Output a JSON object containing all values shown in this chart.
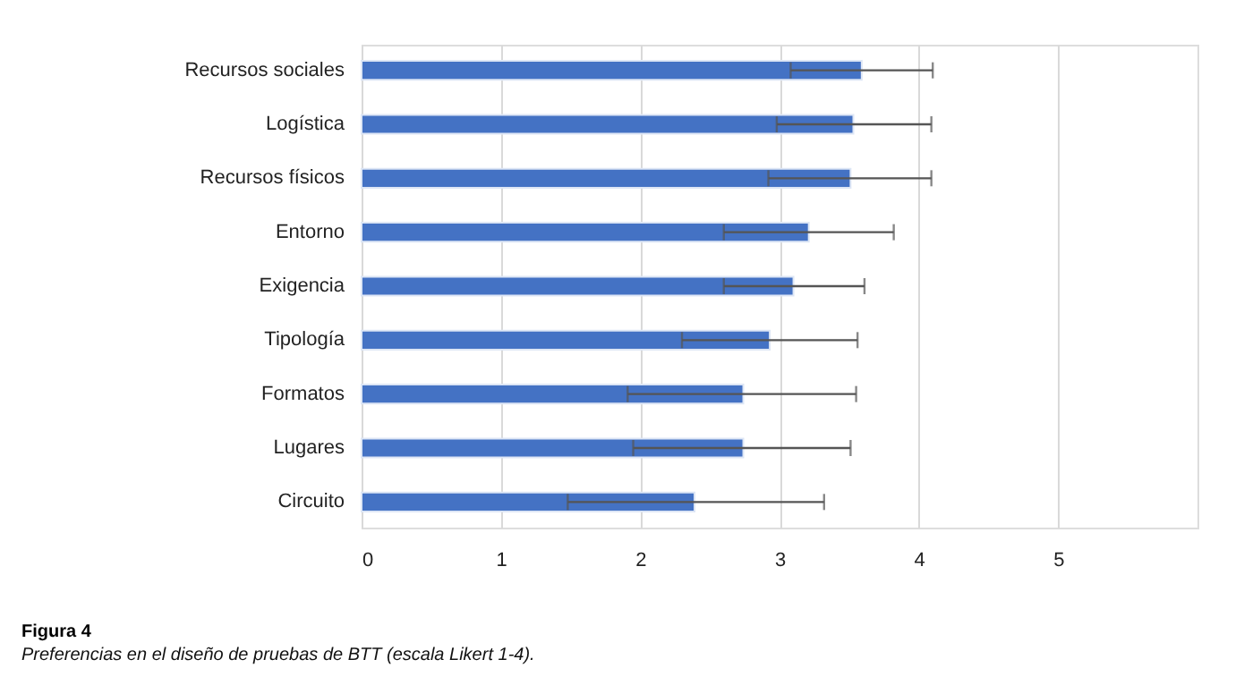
{
  "chart_data": {
    "type": "bar",
    "orientation": "horizontal",
    "title": "Figura 4",
    "subtitle": "Preferencias en el diseño de pruebas de BTT (escala Likert 1-4).",
    "categories": [
      "Recursos sociales",
      "Logística",
      "Recursos físicos",
      "Entorno",
      "Exigencia",
      "Tipología",
      "Formatos",
      "Lugares",
      "Circuito"
    ],
    "values": [
      3.59,
      3.53,
      3.51,
      3.21,
      3.1,
      2.93,
      2.74,
      2.74,
      2.39
    ],
    "errors": [
      [
        3.08,
        4.1
      ],
      [
        2.98,
        4.09
      ],
      [
        2.92,
        4.09
      ],
      [
        2.6,
        3.82
      ],
      [
        2.6,
        3.61
      ],
      [
        2.3,
        3.56
      ],
      [
        1.91,
        3.55
      ],
      [
        1.95,
        3.51
      ],
      [
        1.48,
        3.32
      ]
    ],
    "color": "#4472c4",
    "xlim": [
      0,
      6
    ],
    "xticks": [
      0,
      1,
      2,
      3,
      4,
      5
    ],
    "grid": "x"
  }
}
